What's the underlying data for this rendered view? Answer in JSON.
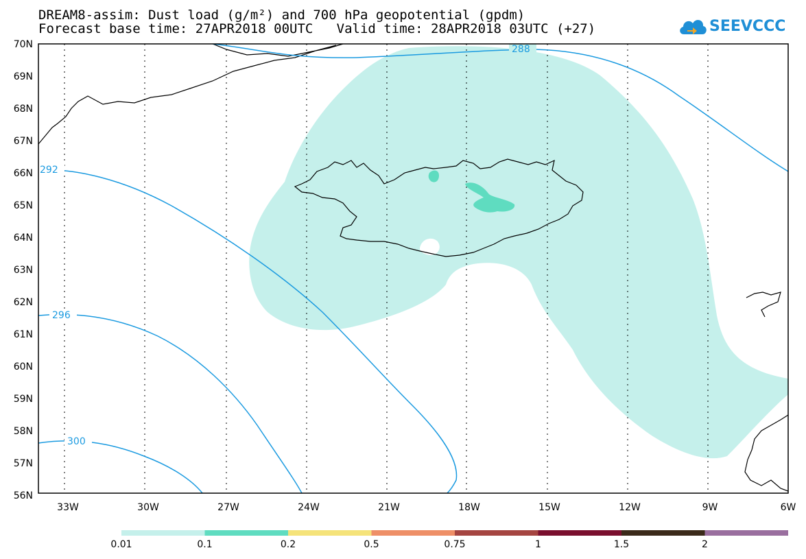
{
  "title": {
    "line1": "DREAM8-assim: Dust load (g/m²) and 700 hPa geopotential (gpdm)",
    "line2": "Forecast base time: 27APR2018 00UTC   Valid time: 28APR2018 03UTC (+27)"
  },
  "logo": {
    "text": "SEEVCCC",
    "icon": "cloud-icon"
  },
  "colors": {
    "contour": "#1a9ae0",
    "coast": "#000000",
    "dust_level_1": "#c5f0eb",
    "dust_level_2": "#5fdcc0"
  },
  "map": {
    "lat_labels": [
      "70N",
      "69N",
      "68N",
      "67N",
      "66N",
      "65N",
      "64N",
      "63N",
      "62N",
      "61N",
      "60N",
      "59N",
      "58N",
      "57N",
      "56N"
    ],
    "lon_labels": [
      "33W",
      "30W",
      "27W",
      "24W",
      "21W",
      "18W",
      "15W",
      "12W",
      "9W",
      "6W"
    ],
    "contours": [
      {
        "name": "contour-288",
        "label": "288"
      },
      {
        "name": "contour-292",
        "label": "292"
      },
      {
        "name": "contour-296",
        "label": "296"
      },
      {
        "name": "contour-300",
        "label": "300"
      }
    ]
  },
  "legend": {
    "colors": [
      "#c5f0eb",
      "#5fdcc0",
      "#f5e37a",
      "#ee8f67",
      "#a54541",
      "#7a0f2e",
      "#3b2a1a",
      "#9a6f9f"
    ],
    "labels": [
      "0.01",
      "0.1",
      "0.2",
      "0.5",
      "0.75",
      "1",
      "1.5",
      "2"
    ]
  }
}
